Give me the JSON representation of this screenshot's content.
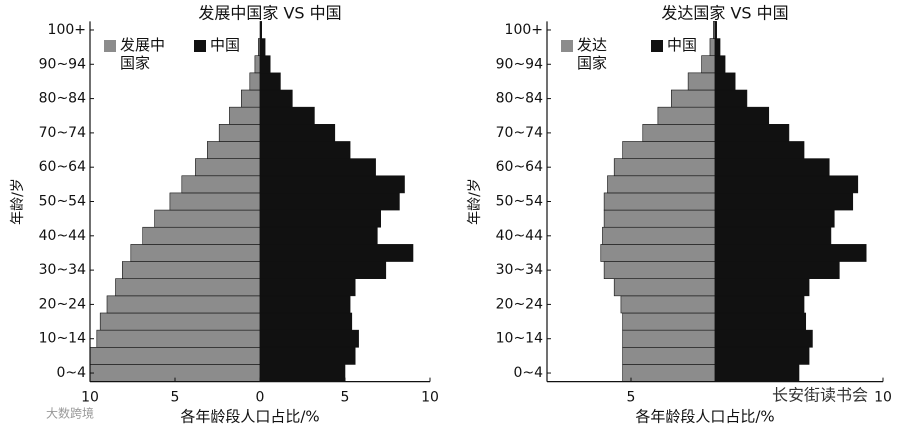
{
  "chart_data": [
    {
      "type": "butterfly",
      "title": "发展中国家 VS 中国",
      "categories": [
        "0~4",
        null,
        "10~14",
        null,
        "20~24",
        null,
        "30~34",
        null,
        "40~44",
        null,
        "50~54",
        null,
        "60~64",
        null,
        "70~74",
        null,
        "80~84",
        null,
        "90~94",
        null,
        "100+"
      ],
      "series": [
        {
          "name": "发展中国家",
          "color": "#8c8c8c",
          "side": "left",
          "values": [
            10,
            10,
            9.6,
            9.4,
            9.0,
            8.5,
            8.1,
            7.6,
            6.9,
            6.2,
            5.3,
            4.6,
            3.8,
            3.1,
            2.4,
            1.8,
            1.1,
            0.6,
            0.3,
            0.1,
            0
          ]
        },
        {
          "name": "中国",
          "color": "#111111",
          "side": "right",
          "values": [
            5.0,
            5.6,
            5.8,
            5.4,
            5.3,
            5.6,
            7.4,
            9.0,
            6.9,
            7.1,
            8.2,
            8.5,
            6.8,
            5.3,
            4.4,
            3.2,
            1.9,
            1.2,
            0.6,
            0.3,
            0.1
          ]
        }
      ],
      "xlim": [
        -10,
        10
      ],
      "xticks": [
        {
          "value": -10,
          "label": "10"
        },
        {
          "value": -5,
          "label": "5"
        },
        0,
        5,
        10
      ],
      "xlabel": "各年龄段人口占比/%",
      "ylabel": "年龄/岁",
      "legend": "upper left"
    },
    {
      "type": "butterfly",
      "title": "发达国家 VS 中国",
      "categories": [
        "0~4",
        null,
        "10~14",
        null,
        "20~24",
        null,
        "30~34",
        null,
        "40~44",
        null,
        "50~54",
        null,
        "60~64",
        null,
        "70~74",
        null,
        "80~84",
        null,
        "90~94",
        null,
        "100+"
      ],
      "series": [
        {
          "name": "发达国家",
          "color": "#8c8c8c",
          "side": "left",
          "values": [
            5.5,
            5.5,
            5.5,
            5.5,
            5.6,
            6.0,
            6.6,
            6.8,
            6.7,
            6.6,
            6.6,
            6.4,
            6.0,
            5.5,
            4.3,
            3.4,
            2.6,
            1.6,
            0.8,
            0.3,
            0.1
          ]
        },
        {
          "name": "中国",
          "color": "#111111",
          "side": "right",
          "values": [
            5.0,
            5.6,
            5.8,
            5.4,
            5.3,
            5.6,
            7.4,
            9.0,
            6.9,
            7.1,
            8.2,
            8.5,
            6.8,
            5.3,
            4.4,
            3.2,
            1.9,
            1.2,
            0.6,
            0.3,
            0.1
          ]
        }
      ],
      "xlim": [
        -10,
        10
      ],
      "xticks": [
        {
          "value": -5,
          "label": "5"
        },
        {
          "value": 10,
          "label": "10"
        }
      ],
      "xlabel": "各年龄段人口占比/%",
      "ylabel": "年龄/岁",
      "legend": "upper left"
    }
  ],
  "watermarks": [
    "长安街读书会",
    "大数跨境"
  ]
}
